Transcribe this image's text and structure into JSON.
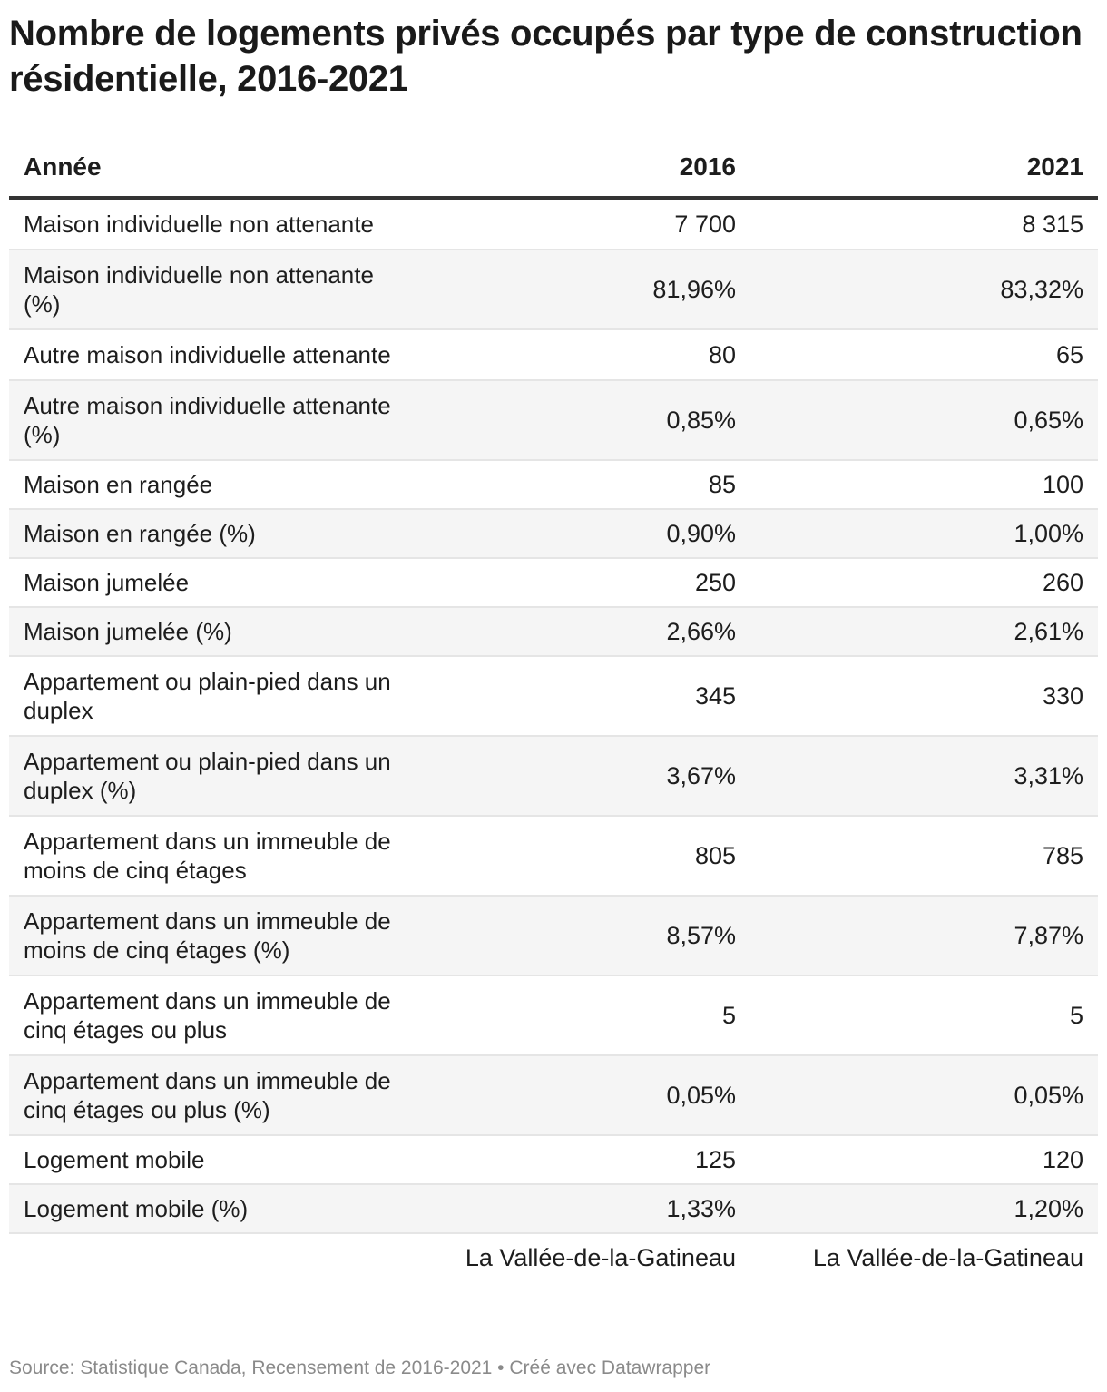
{
  "title": "Nombre de logements privés occupés par type de construction résidentielle, 2016-2021",
  "chart_data": {
    "type": "table",
    "columns": [
      "Année",
      "2016",
      "2021"
    ],
    "rows": [
      {
        "label": "Maison individuelle non attenante",
        "v2016": "7 700",
        "v2021": "8 315"
      },
      {
        "label": "Maison individuelle non attenante (%)",
        "v2016": "81,96%",
        "v2021": "83,32%"
      },
      {
        "label": "Autre maison individuelle attenante",
        "v2016": "80",
        "v2021": "65"
      },
      {
        "label": "Autre maison individuelle attenante (%)",
        "v2016": "0,85%",
        "v2021": "0,65%"
      },
      {
        "label": "Maison en rangée",
        "v2016": "85",
        "v2021": "100"
      },
      {
        "label": "Maison en rangée (%)",
        "v2016": "0,90%",
        "v2021": "1,00%"
      },
      {
        "label": "Maison jumelée",
        "v2016": "250",
        "v2021": "260"
      },
      {
        "label": "Maison jumelée (%)",
        "v2016": "2,66%",
        "v2021": "2,61%"
      },
      {
        "label": "Appartement ou plain-pied dans un duplex",
        "v2016": "345",
        "v2021": "330"
      },
      {
        "label": "Appartement ou plain-pied dans un duplex (%)",
        "v2016": "3,67%",
        "v2021": "3,31%"
      },
      {
        "label": "Appartement dans un immeuble de moins de cinq étages",
        "v2016": "805",
        "v2021": "785"
      },
      {
        "label": "Appartement dans un immeuble de moins de cinq étages (%)",
        "v2016": "8,57%",
        "v2021": "7,87%"
      },
      {
        "label": "Appartement dans un immeuble de cinq étages ou plus",
        "v2016": "5",
        "v2021": "5"
      },
      {
        "label": "Appartement dans un immeuble de cinq étages ou plus (%)",
        "v2016": "0,05%",
        "v2021": "0,05%"
      },
      {
        "label": "Logement mobile",
        "v2016": "125",
        "v2021": "120"
      },
      {
        "label": "Logement mobile (%)",
        "v2016": "1,33%",
        "v2021": "1,20%"
      }
    ],
    "region_row": {
      "v2016": "La Vallée-de-la-Gatineau",
      "v2021": "La Vallée-de-la-Gatineau"
    }
  },
  "source": "Source: Statistique Canada, Recensement de 2016-2021 • Créé avec Datawrapper"
}
